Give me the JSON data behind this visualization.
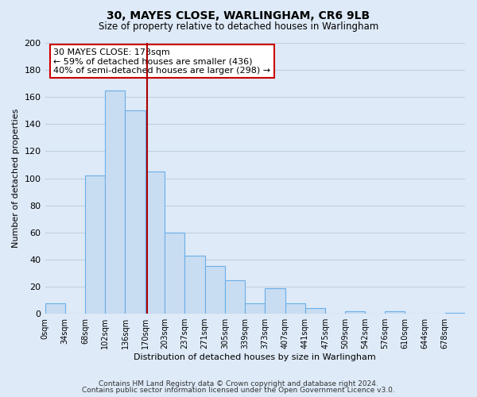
{
  "title": "30, MAYES CLOSE, WARLINGHAM, CR6 9LB",
  "subtitle": "Size of property relative to detached houses in Warlingham",
  "xlabel": "Distribution of detached houses by size in Warlingham",
  "ylabel": "Number of detached properties",
  "bin_edges": [
    0,
    34,
    68,
    102,
    136,
    170,
    203,
    237,
    271,
    305,
    339,
    373,
    407,
    441,
    475,
    509,
    542,
    576,
    610,
    644,
    678,
    712
  ],
  "bin_labels": [
    "0sqm",
    "34sqm",
    "68sqm",
    "102sqm",
    "136sqm",
    "170sqm",
    "203sqm",
    "237sqm",
    "271sqm",
    "305sqm",
    "339sqm",
    "373sqm",
    "407sqm",
    "441sqm",
    "475sqm",
    "509sqm",
    "542sqm",
    "576sqm",
    "610sqm",
    "644sqm",
    "678sqm"
  ],
  "bar_values": [
    8,
    0,
    102,
    165,
    150,
    105,
    60,
    43,
    35,
    25,
    8,
    19,
    8,
    4,
    0,
    2,
    0,
    2,
    0,
    0,
    1
  ],
  "bar_color": "#c9ddf2",
  "bar_edge_color": "#6aaee8",
  "vline_x": 173,
  "vline_color": "#aa0000",
  "annotation_text": "30 MAYES CLOSE: 173sqm\n← 59% of detached houses are smaller (436)\n40% of semi-detached houses are larger (298) →",
  "annotation_box_color": "white",
  "annotation_box_edge_color": "#cc0000",
  "ylim": [
    0,
    200
  ],
  "yticks": [
    0,
    20,
    40,
    60,
    80,
    100,
    120,
    140,
    160,
    180,
    200
  ],
  "grid_color": "#c0cfe0",
  "footer1": "Contains HM Land Registry data © Crown copyright and database right 2024.",
  "footer2": "Contains public sector information licensed under the Open Government Licence v3.0.",
  "bg_color": "#deeaf8",
  "plot_bg_color": "#deeaf8"
}
